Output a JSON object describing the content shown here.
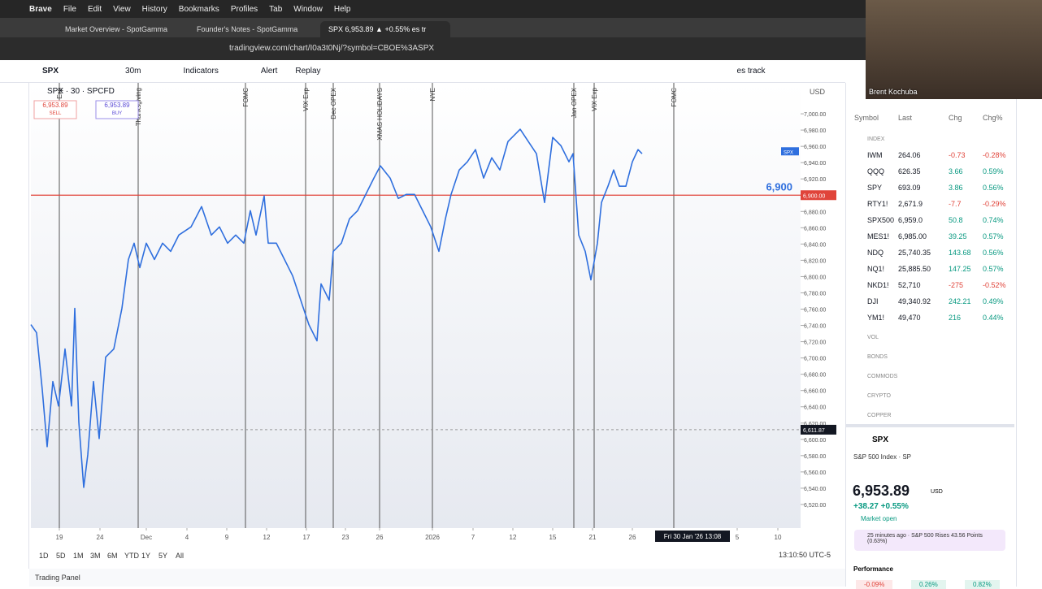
{
  "menubar": {
    "app": "Brave",
    "items": [
      "File",
      "Edit",
      "View",
      "History",
      "Bookmarks",
      "Profiles",
      "Tab",
      "Window",
      "Help"
    ]
  },
  "tabs": [
    "Market Overview - SpotGamma",
    "Founder's Notes - SpotGamma",
    "SPX 6,953.89 ▲ +0.55% es tr"
  ],
  "url": "tradingview.com/chart/I0a3t0Nj/?symbol=CBOE%3ASPX",
  "toolbar": {
    "symbol": "SPX",
    "interval": "30m",
    "indicators": "Indicators",
    "alert": "Alert",
    "replay": "Replay",
    "layout": "es track"
  },
  "legend": {
    "title": "SPX · 30 · SPCFD",
    "sell": "6,953.89",
    "sell_label": "SELL",
    "buy": "6,953.89",
    "buy_label": "BUY"
  },
  "webcam": {
    "name": "Brent Kochuba"
  },
  "chart_data": {
    "type": "line",
    "currency": "USD",
    "xlim": [
      0,
      947
    ],
    "ylim": [
      6491,
      7038
    ],
    "xticks": [
      {
        "value": 35,
        "label": "19"
      },
      {
        "value": 85,
        "label": "24"
      },
      {
        "value": 142,
        "label": "Dec"
      },
      {
        "value": 192,
        "label": "4"
      },
      {
        "value": 241,
        "label": "9"
      },
      {
        "value": 290,
        "label": "12"
      },
      {
        "value": 339,
        "label": "17"
      },
      {
        "value": 387,
        "label": "23"
      },
      {
        "value": 429,
        "label": "26"
      },
      {
        "value": 494,
        "label": "2026"
      },
      {
        "value": 544,
        "label": "7"
      },
      {
        "value": 593,
        "label": "12"
      },
      {
        "value": 642,
        "label": "15"
      },
      {
        "value": 691,
        "label": "21"
      },
      {
        "value": 740,
        "label": "26"
      },
      {
        "value": 869,
        "label": "5"
      },
      {
        "value": 919,
        "label": "10"
      }
    ],
    "yticks": [
      {
        "value": 7000,
        "label": "7,000.00"
      },
      {
        "value": 6980,
        "label": "6,980.00"
      },
      {
        "value": 6960,
        "label": "6,960.00"
      },
      {
        "value": 6940,
        "label": "6,940.00"
      },
      {
        "value": 6920,
        "label": "6,920.00"
      },
      {
        "value": 6880,
        "label": "6,880.00"
      },
      {
        "value": 6860,
        "label": "6,860.00"
      },
      {
        "value": 6840,
        "label": "6,840.00"
      },
      {
        "value": 6820,
        "label": "6,820.00"
      },
      {
        "value": 6800,
        "label": "6,800.00"
      },
      {
        "value": 6780,
        "label": "6,780.00"
      },
      {
        "value": 6760,
        "label": "6,760.00"
      },
      {
        "value": 6740,
        "label": "6,740.00"
      },
      {
        "value": 6720,
        "label": "6,720.00"
      },
      {
        "value": 6700,
        "label": "6,700.00"
      },
      {
        "value": 6680,
        "label": "6,680.00"
      },
      {
        "value": 6660,
        "label": "6,660.00"
      },
      {
        "value": 6640,
        "label": "6,640.00"
      },
      {
        "value": 6620,
        "label": "6,620.00"
      },
      {
        "value": 6600,
        "label": "6,600.00"
      },
      {
        "value": 6580,
        "label": "6,580.00"
      },
      {
        "value": 6560,
        "label": "6,560.00"
      },
      {
        "value": 6540,
        "label": "6,540.00"
      },
      {
        "value": 6520,
        "label": "6,520.00"
      }
    ],
    "series": [
      {
        "name": "SPX",
        "color": "#2f6fde",
        "x": [
          0,
          7,
          14,
          20,
          27,
          34,
          42,
          50,
          54,
          59,
          65,
          70,
          77,
          84,
          92,
          102,
          112,
          120,
          127,
          134,
          142,
          152,
          162,
          172,
          182,
          197,
          210,
          222,
          232,
          242,
          252,
          262,
          270,
          277,
          287,
          292,
          302,
          312,
          322,
          332,
          342,
          352,
          357,
          367,
          372,
          382,
          392,
          402,
          412,
          422,
          430,
          442,
          452,
          462,
          472,
          482,
          492,
          502,
          510,
          517,
          527,
          537,
          547,
          557,
          567,
          577,
          587,
          602,
          612,
          622,
          632,
          642,
          652,
          662,
          667,
          674,
          682,
          689,
          697,
          702,
          710,
          717,
          724,
          732,
          740,
          747,
          752
        ],
        "values": [
          6741,
          6731,
          6661,
          6591,
          6671,
          6641,
          6711,
          6641,
          6761,
          6621,
          6541,
          6581,
          6671,
          6601,
          6701,
          6711,
          6761,
          6821,
          6841,
          6811,
          6841,
          6821,
          6841,
          6831,
          6851,
          6861,
          6886,
          6851,
          6861,
          6841,
          6851,
          6841,
          6881,
          6851,
          6899,
          6841,
          6841,
          6821,
          6801,
          6771,
          6741,
          6721,
          6791,
          6771,
          6831,
          6841,
          6871,
          6881,
          6901,
          6921,
          6936,
          6921,
          6896,
          6901,
          6901,
          6881,
          6861,
          6831,
          6871,
          6901,
          6931,
          6941,
          6956,
          6921,
          6946,
          6931,
          6966,
          6981,
          6966,
          6951,
          6891,
          6971,
          6961,
          6941,
          6951,
          6851,
          6831,
          6796,
          6841,
          6891,
          6911,
          6931,
          6911,
          6911,
          6941,
          6956,
          6951
        ]
      }
    ],
    "hline": {
      "value": 6900,
      "label": "6,900",
      "color": "#e0443a",
      "axis_label": "6,900.00"
    },
    "last_price": {
      "value": 6953.89,
      "label": "SPX"
    },
    "crosshair": {
      "value": 6611.87,
      "label": "6,611.87",
      "date": "Fri 30 Jan '26  13:08"
    },
    "annotations": [
      {
        "x": 35,
        "label": "VIX Exp"
      },
      {
        "x": 132,
        "label": "Thanksgiving"
      },
      {
        "x": 264,
        "label": "FOMC"
      },
      {
        "x": 338,
        "label": "VIX Exp"
      },
      {
        "x": 372,
        "label": "Dec OPEX"
      },
      {
        "x": 429,
        "label": "XMAS HOLIDAYS"
      },
      {
        "x": 494,
        "label": "NYE"
      },
      {
        "x": 668,
        "label": "Jan OPEX"
      },
      {
        "x": 693,
        "label": "VIX Exp"
      },
      {
        "x": 791,
        "label": "FOMC"
      }
    ]
  },
  "ranges": [
    "1D",
    "5D",
    "1M",
    "3M",
    "6M",
    "YTD",
    "1Y",
    "5Y",
    "All"
  ],
  "clock": "13:10:50 UTC-5",
  "panel": "Trading Panel",
  "watchlist": {
    "header": [
      "Symbol",
      "Last",
      "Chg",
      "Chg%"
    ],
    "group": "INDEX",
    "rows": [
      [
        "IWM",
        "264.06",
        "-0.73",
        "-0.28%"
      ],
      [
        "QQQ",
        "626.35",
        "3.66",
        "0.59%"
      ],
      [
        "SPY",
        "693.09",
        "3.86",
        "0.56%"
      ],
      [
        "RTY1!",
        "2,671.9",
        "-7.7",
        "-0.29%"
      ],
      [
        "SPX500",
        "6,959.0",
        "50.8",
        "0.74%"
      ],
      [
        "MES1!",
        "6,985.00",
        "39.25",
        "0.57%"
      ],
      [
        "NDQ",
        "25,740.35",
        "143.68",
        "0.56%"
      ],
      [
        "NQ1!",
        "25,885.50",
        "147.25",
        "0.57%"
      ],
      [
        "NKD1!",
        "52,710",
        "-275",
        "-0.52%"
      ],
      [
        "DJI",
        "49,340.92",
        "242.21",
        "0.49%"
      ],
      [
        "YM1!",
        "49,470",
        "216",
        "0.44%"
      ]
    ],
    "groups": [
      "VOL",
      "BONDS",
      "COMMODS",
      "CRYPTO",
      "COPPER"
    ]
  },
  "detail": {
    "symbol": "SPX",
    "name": "S&P 500 Index · SP",
    "price": "6,953.89",
    "currency": "USD",
    "change": "+38.27 +0.55%",
    "status": "Market open",
    "news": "25 minutes ago · S&P 500 Rises 43.56 Points (0.63%)",
    "performance_title": "Performance",
    "performance": [
      "-0.09%",
      "0.26%",
      "0.82%"
    ]
  }
}
